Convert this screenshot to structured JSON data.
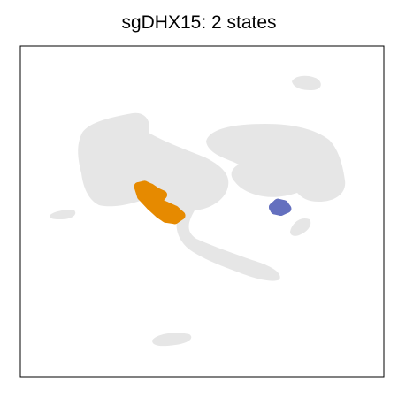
{
  "chart_data": {
    "type": "scatter",
    "title": "sgDHX15: 2 states",
    "xlabel": "",
    "ylabel": "",
    "axis_ticks": "none",
    "grid": false,
    "legend": "none",
    "background_color": "#e3e3e3",
    "series": [
      {
        "color": "#e68a00",
        "points": [
          [
            -2.1,
            0.9
          ],
          [
            -1.9,
            0.95
          ],
          [
            -1.7,
            0.85
          ],
          [
            -1.5,
            0.7
          ],
          [
            -1.3,
            0.6
          ],
          [
            -1.5,
            0.35
          ],
          [
            -1.2,
            0.2
          ],
          [
            -0.9,
            0.05
          ],
          [
            -0.7,
            -0.15
          ],
          [
            -0.9,
            -0.3
          ],
          [
            -1.2,
            -0.25
          ],
          [
            -1.4,
            -0.1
          ],
          [
            -1.7,
            0.2
          ],
          [
            -2.0,
            0.55
          ]
        ]
      },
      {
        "color": "#6470bf",
        "points": [
          [
            2.35,
            0.15
          ],
          [
            2.5,
            0.3
          ],
          [
            2.7,
            0.25
          ],
          [
            2.8,
            0.1
          ],
          [
            2.6,
            0.0
          ],
          [
            2.4,
            0.05
          ]
        ]
      }
    ]
  }
}
